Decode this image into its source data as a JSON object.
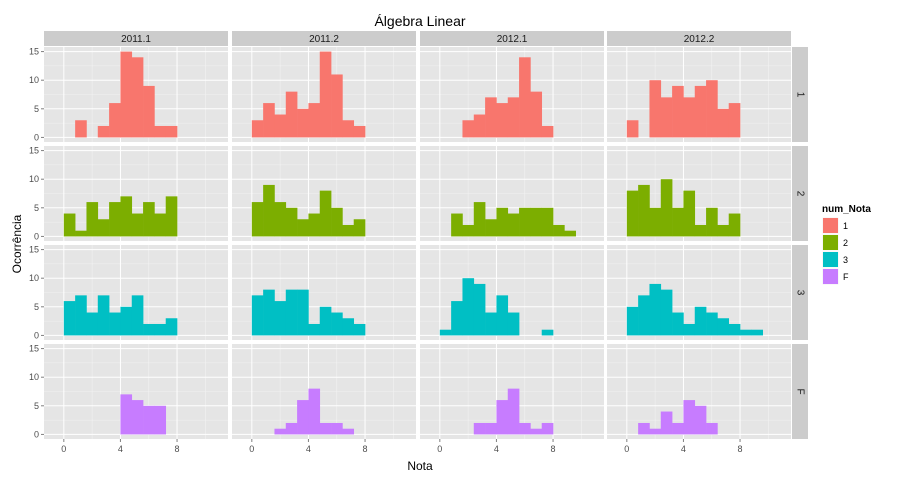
{
  "chart_data": {
    "type": "bar",
    "title": "Álgebra Linear",
    "xlabel": "Nota",
    "ylabel": "Ocorrência",
    "xlim": [
      -1.4,
      11.6
    ],
    "ylim": [
      -0.8,
      15.8
    ],
    "x_ticks": [
      0,
      4,
      8
    ],
    "y_ticks": [
      0,
      5,
      10,
      15
    ],
    "bin_width": 0.8,
    "bin_starts": [
      0,
      0.8,
      1.6,
      2.4,
      3.2,
      4.0,
      4.8,
      5.6,
      6.4,
      7.2,
      8.0,
      8.8,
      9.6,
      10.4
    ],
    "grid": true,
    "legend_position": "right",
    "legend_title": "num_Nota",
    "columns": [
      "2011.1",
      "2011.2",
      "2012.1",
      "2012.2"
    ],
    "rows": [
      "1",
      "2",
      "3",
      "F"
    ],
    "colors": {
      "1": "#F8766D",
      "2": "#7CAE00",
      "3": "#00BFC4",
      "F": "#C77CFF"
    },
    "counts": {
      "1": [
        [
          0,
          3,
          0,
          2,
          6,
          15,
          14,
          9,
          2,
          2,
          0,
          0,
          0,
          0
        ],
        [
          3,
          6,
          4,
          8,
          5,
          6,
          15,
          11,
          3,
          2,
          0,
          0,
          0,
          0
        ],
        [
          0,
          0,
          3,
          4,
          7,
          6,
          7,
          14,
          8,
          2,
          0,
          0,
          0,
          0
        ],
        [
          3,
          0,
          10,
          7,
          9,
          7,
          9,
          10,
          5,
          6,
          0,
          0,
          0,
          0
        ]
      ],
      "2": [
        [
          4,
          1,
          6,
          3,
          6,
          7,
          4,
          6,
          4,
          7,
          0,
          0,
          0,
          0
        ],
        [
          6,
          9,
          6,
          5,
          3,
          4,
          8,
          5,
          2,
          3,
          0,
          0,
          0,
          0
        ],
        [
          0,
          4,
          2,
          6,
          3,
          5,
          4,
          5,
          5,
          5,
          2,
          1,
          0,
          0
        ],
        [
          8,
          9,
          5,
          10,
          5,
          8,
          2,
          5,
          2,
          4,
          0,
          0,
          0,
          0
        ]
      ],
      "3": [
        [
          6,
          7,
          4,
          7,
          4,
          5,
          7,
          2,
          2,
          3,
          0,
          0,
          0,
          0
        ],
        [
          7,
          8,
          6,
          8,
          8,
          2,
          5,
          4,
          3,
          2,
          0,
          0,
          0,
          0
        ],
        [
          1,
          6,
          10,
          9,
          4,
          7,
          4,
          0,
          0,
          1,
          0,
          0,
          0,
          0
        ],
        [
          5,
          7,
          9,
          8,
          4,
          2,
          5,
          4,
          3,
          2,
          1,
          1,
          0,
          0
        ]
      ],
      "F": [
        [
          0,
          0,
          0,
          0,
          0,
          7,
          6,
          5,
          5,
          0,
          0,
          0,
          0,
          0
        ],
        [
          0,
          0,
          1,
          2,
          6,
          8,
          2,
          2,
          1,
          0,
          0,
          0,
          0,
          0
        ],
        [
          0,
          0,
          0,
          2,
          2,
          6,
          8,
          2,
          1,
          2,
          0,
          0,
          0,
          0
        ],
        [
          0,
          2,
          1,
          4,
          2,
          6,
          5,
          2,
          0,
          0,
          0,
          0,
          0,
          0
        ]
      ]
    }
  }
}
